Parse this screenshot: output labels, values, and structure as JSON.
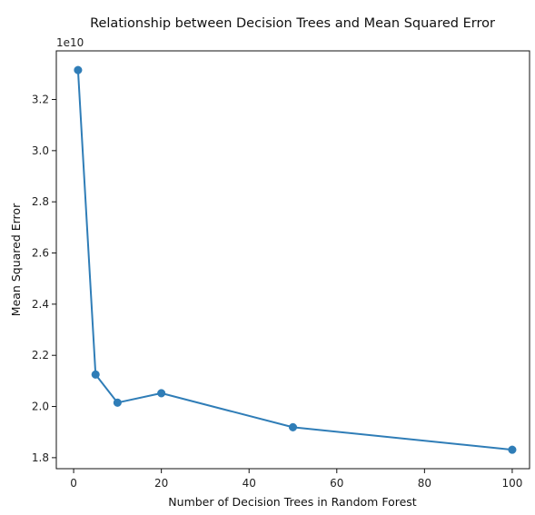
{
  "chart_data": {
    "type": "line",
    "title": "Relationship between Decision Trees and Mean Squared Error",
    "xlabel": "Number of Decision Trees in Random Forest",
    "ylabel": "Mean Squared Error",
    "y_offset_label": "1e10",
    "x": [
      1,
      5,
      10,
      20,
      50,
      100
    ],
    "series": [
      {
        "values": [
          3.315,
          2.125,
          2.015,
          2.052,
          1.919,
          1.831
        ],
        "color": "#2f7db7",
        "marker": "circle"
      }
    ],
    "xlim": [
      -3.95,
      103.95
    ],
    "ylim": [
      1.757,
      3.39
    ],
    "xticks": [
      0,
      20,
      40,
      60,
      80,
      100
    ],
    "xtick_labels": [
      "0",
      "20",
      "40",
      "60",
      "80",
      "100"
    ],
    "yticks": [
      1.8,
      2.0,
      2.2,
      2.4,
      2.6,
      2.8,
      3.0,
      3.2
    ],
    "ytick_labels": [
      "1.8",
      "2.0",
      "2.2",
      "2.4",
      "2.6",
      "2.8",
      "3.0",
      "3.2"
    ],
    "grid": false,
    "legend": false
  }
}
